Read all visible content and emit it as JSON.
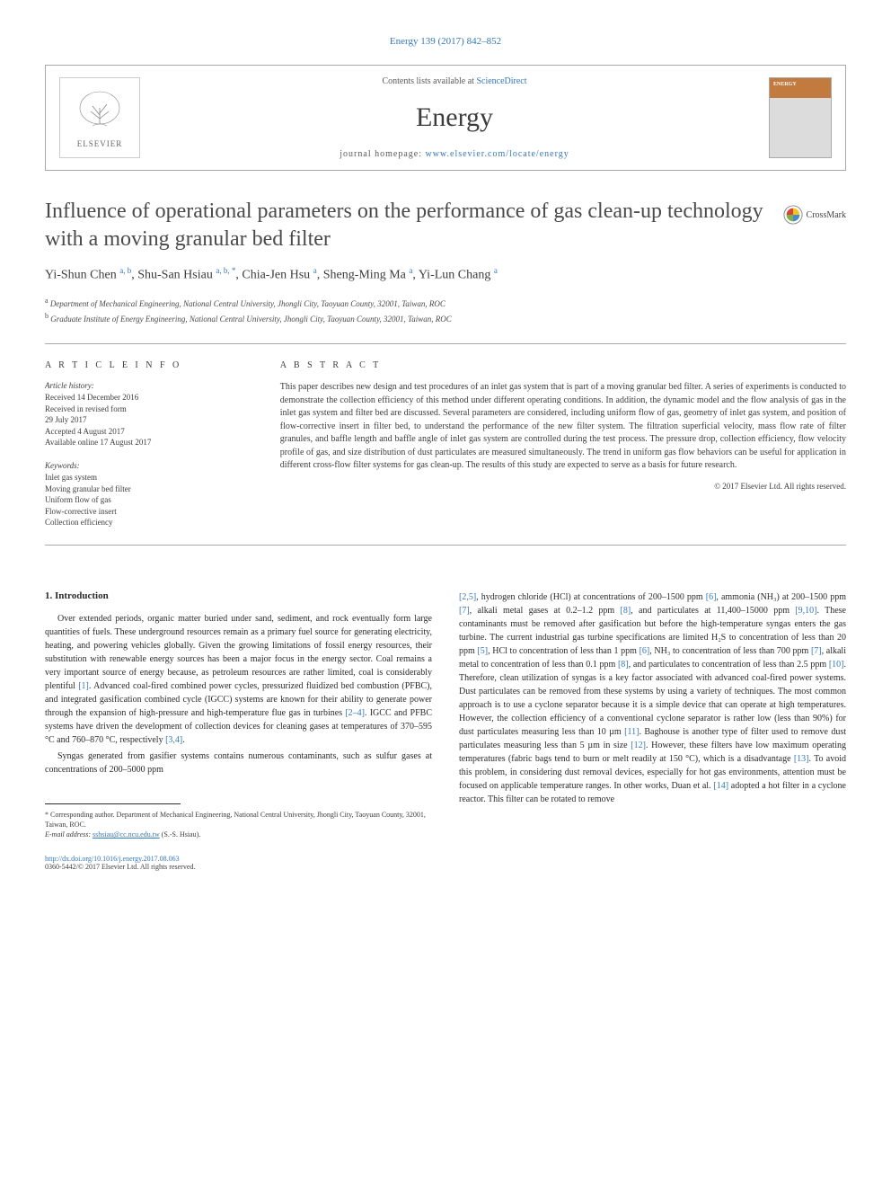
{
  "citation": "Energy 139 (2017) 842–852",
  "header": {
    "contents_text": "Contents lists available at ",
    "contents_link": "ScienceDirect",
    "journal": "Energy",
    "homepage_text": "journal homepage: ",
    "homepage_link": "www.elsevier.com/locate/energy",
    "publisher": "ELSEVIER",
    "cover_brand": "ENERGY"
  },
  "title": "Influence of operational parameters on the performance of gas clean-up technology with a moving granular bed filter",
  "crossmark": "CrossMark",
  "authors_html": "Yi-Shun Chen <sup>a, b</sup>, Shu-San Hsiau <sup>a, b, *</sup>, Chia-Jen Hsu <sup>a</sup>, Sheng-Ming Ma <sup>a</sup>, Yi-Lun Chang <sup>a</sup>",
  "affiliations": [
    "a Department of Mechanical Engineering, National Central University, Jhongli City, Taoyuan County, 32001, Taiwan, ROC",
    "b Graduate Institute of Energy Engineering, National Central University, Jhongli City, Taoyuan County, 32001, Taiwan, ROC"
  ],
  "article_info_heading": "A R T I C L E   I N F O",
  "abstract_heading": "A B S T R A C T",
  "history_label": "Article history:",
  "history": [
    "Received 14 December 2016",
    "Received in revised form",
    "29 July 2017",
    "Accepted 4 August 2017",
    "Available online 17 August 2017"
  ],
  "keywords_label": "Keywords:",
  "keywords": [
    "Inlet gas system",
    "Moving granular bed filter",
    "Uniform flow of gas",
    "Flow-corrective insert",
    "Collection efficiency"
  ],
  "abstract": "This paper describes new design and test procedures of an inlet gas system that is part of a moving granular bed filter. A series of experiments is conducted to demonstrate the collection efficiency of this method under different operating conditions. In addition, the dynamic model and the flow analysis of gas in the inlet gas system and filter bed are discussed. Several parameters are considered, including uniform flow of gas, geometry of inlet gas system, and position of flow-corrective insert in filter bed, to understand the performance of the new filter system. The filtration superficial velocity, mass flow rate of filter granules, and baffle length and baffle angle of inlet gas system are controlled during the test process. The pressure drop, collection efficiency, flow velocity profile of gas, and size distribution of dust particulates are measured simultaneously. The trend in uniform gas flow behaviors can be useful for application in different cross-flow filter systems for gas clean-up. The results of this study are expected to serve as a basis for future research.",
  "abstract_copyright": "© 2017 Elsevier Ltd. All rights reserved.",
  "intro_heading": "1. Introduction",
  "intro_p1": "Over extended periods, organic matter buried under sand, sediment, and rock eventually form large quantities of fuels. These underground resources remain as a primary fuel source for generating electricity, heating, and powering vehicles globally. Given the growing limitations of fossil energy resources, their substitution with renewable energy sources has been a major focus in the energy sector. Coal remains a very important source of energy because, as petroleum resources are rather limited, coal is considerably plentiful ",
  "ref1": "[1]",
  "intro_p1b": ". Advanced coal-fired combined power cycles, pressurized fluidized bed combustion (PFBC), and integrated gasification combined cycle (IGCC) systems are known for their ability to generate power through the expansion of high-pressure and high-temperature flue gas in turbines ",
  "ref2_4": "[2–4]",
  "intro_p1c": ". IGCC and PFBC systems have driven the development of collection devices for cleaning gases at temperatures of 370–595 °C and 760–870 °C, respectively ",
  "ref3_4": "[3,4]",
  "intro_p1d": ".",
  "intro_p2": "Syngas generated from gasifier systems contains numerous contaminants, such as sulfur gases at concentrations of 200–5000 ppm",
  "col2_p1a": "",
  "ref2_5": "[2,5]",
  "col2_p1b": ", hydrogen chloride (HCl) at concentrations of 200–1500 ppm ",
  "ref6": "[6]",
  "col2_p1c": ", ammonia (NH₃) at 200–1500 ppm ",
  "ref7": "[7]",
  "col2_p1d": ", alkali metal gases at 0.2–1.2 ppm ",
  "ref8": "[8]",
  "col2_p1e": ", and particulates at 11,400–15000 ppm ",
  "ref9_10": "[9,10]",
  "col2_p1f": ". These contaminants must be removed after gasification but before the high-temperature syngas enters the gas turbine. The current industrial gas turbine specifications are limited H₂S to concentration of less than 20 ppm ",
  "ref5b": "[5]",
  "col2_p1g": ", HCl to concentration of less than 1 ppm ",
  "ref6b": "[6]",
  "col2_p1h": ", NH₃ to concentration of less than 700 ppm ",
  "ref7b": "[7]",
  "col2_p1i": ", alkali metal to concentration of less than 0.1 ppm ",
  "ref8b": "[8]",
  "col2_p1j": ", and particulates to concentration of less than 2.5 ppm ",
  "ref10": "[10]",
  "col2_p1k": ". Therefore, clean utilization of syngas is a key factor associated with advanced coal-fired power systems. Dust particulates can be removed from these systems by using a variety of techniques. The most common approach is to use a cyclone separator because it is a simple device that can operate at high temperatures. However, the collection efficiency of a conventional cyclone separator is rather low (less than 90%) for dust particulates measuring less than 10 µm ",
  "ref11": "[11]",
  "col2_p1l": ". Baghouse is another type of filter used to remove dust particulates measuring less than 5 µm in size ",
  "ref12": "[12]",
  "col2_p1m": ". However, these filters have low maximum operating temperatures (fabric bags tend to burn or melt readily at 150 °C), which is a disadvantage ",
  "ref13": "[13]",
  "col2_p1n": ". To avoid this problem, in considering dust removal devices, especially for hot gas environments, attention must be focused on applicable temperature ranges. In other works, Duan et al. ",
  "ref14": "[14]",
  "col2_p1o": " adopted a hot filter in a cyclone reactor. This filter can be rotated to remove",
  "footnote_corresp": "* Corresponding author. Department of Mechanical Engineering, National Central University, Jhongli City, Taoyuan County, 32001, Taiwan, ROC.",
  "footnote_email_label": "E-mail address: ",
  "footnote_email": "sshsiau@cc.ncu.edu.tw",
  "footnote_email_suffix": " (S.-S. Hsiau).",
  "doi": "http://dx.doi.org/10.1016/j.energy.2017.08.063",
  "issn_copyright": "0360-5442/© 2017 Elsevier Ltd. All rights reserved.",
  "colors": {
    "link": "#3577b8",
    "border": "#a8a8a8",
    "text": "#2a2a2a",
    "text_light": "#3c3c3c",
    "cover_top": "#c27a3e"
  }
}
